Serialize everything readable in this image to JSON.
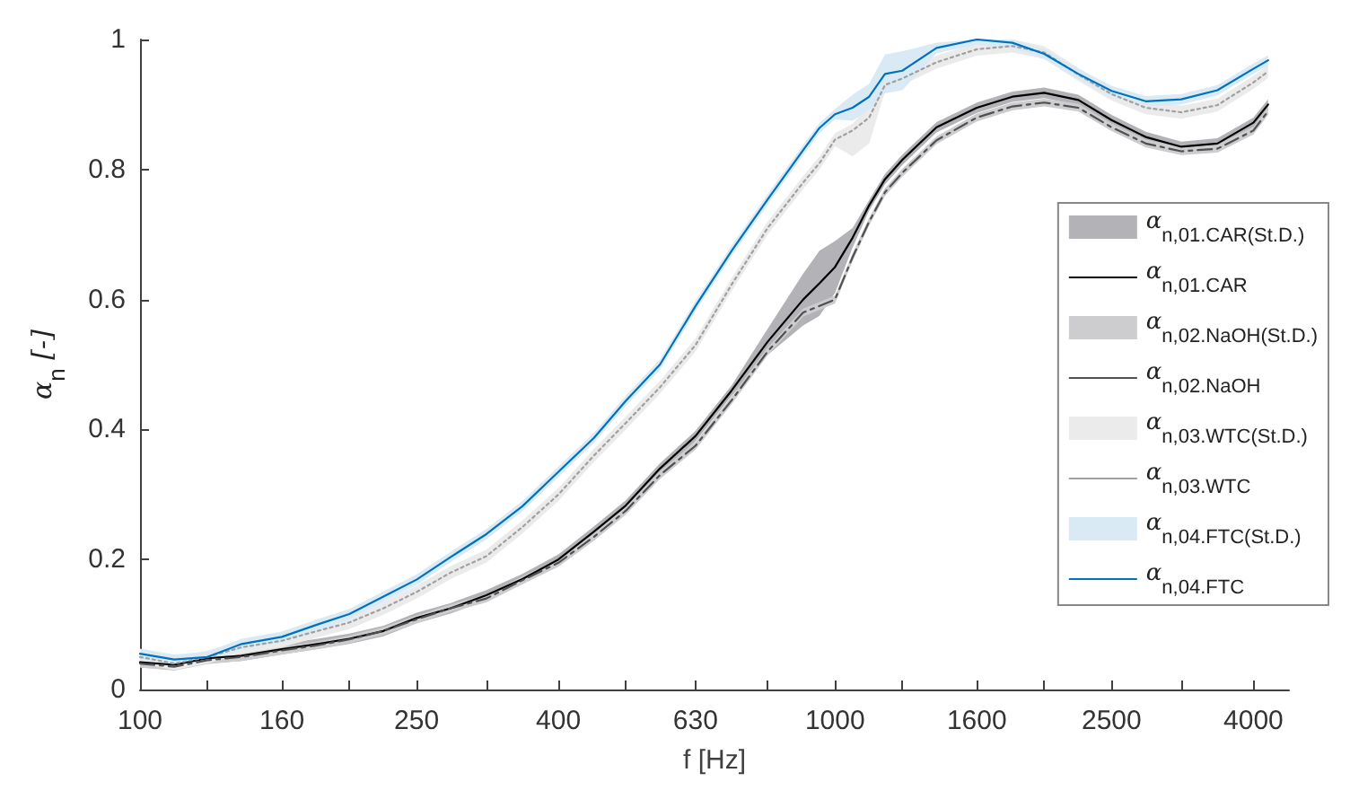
{
  "chart_data": {
    "type": "line",
    "xlabel": "f [Hz]",
    "ylabel": "α$_{n}$ [-]",
    "log": "x",
    "xlim": [
      100,
      4500
    ],
    "ylim": [
      0,
      1
    ],
    "xticks": [
      100,
      {
        "value": 125,
        "label": null
      },
      160,
      {
        "value": 200,
        "label": null
      },
      250,
      {
        "value": 315,
        "label": null
      },
      400,
      {
        "value": 500,
        "label": null
      },
      630,
      {
        "value": 800,
        "label": null
      },
      1000,
      {
        "value": 1250,
        "label": null
      },
      1600,
      {
        "value": 2000,
        "label": null
      },
      2500,
      {
        "value": 3150,
        "label": null
      },
      4000
    ],
    "yticks": [
      0,
      0.2,
      0.4,
      0.6,
      0.8,
      1
    ],
    "grid": false,
    "legend": "right",
    "marker": "none",
    "x": [
      100,
      112,
      125,
      140,
      160,
      180,
      200,
      224,
      250,
      280,
      315,
      355,
      400,
      450,
      500,
      560,
      630,
      710,
      800,
      900,
      950,
      1000,
      1060,
      1120,
      1180,
      1250,
      1400,
      1600,
      1800,
      2000,
      2240,
      2500,
      2800,
      3150,
      3550,
      4000,
      4200
    ],
    "series": [
      {
        "name": "α$_{n,01.CAR(St.D.)}$",
        "color": "#b3b3b7",
        "values": [
          null,
          null,
          null,
          null,
          null,
          null,
          null,
          null,
          null,
          null,
          null,
          null,
          null,
          null,
          null,
          null,
          null,
          null,
          null,
          null,
          null,
          null,
          null,
          null,
          null,
          null,
          null,
          null,
          null,
          null,
          null,
          null,
          null,
          null,
          null,
          null,
          null
        ],
        "lower": [
          0.034,
          0.03,
          0.04,
          0.044,
          0.054,
          0.062,
          0.07,
          0.082,
          0.102,
          0.117,
          0.137,
          0.162,
          0.192,
          0.235,
          0.275,
          0.332,
          0.382,
          0.452,
          0.515,
          0.56,
          0.575,
          0.61,
          0.68,
          0.737,
          0.777,
          0.807,
          0.857,
          0.887,
          0.904,
          0.91,
          0.899,
          0.868,
          0.842,
          0.827,
          0.832,
          0.864,
          0.892
        ],
        "upper": [
          0.05,
          0.046,
          0.056,
          0.06,
          0.07,
          0.078,
          0.086,
          0.098,
          0.118,
          0.133,
          0.153,
          0.178,
          0.208,
          0.251,
          0.291,
          0.348,
          0.398,
          0.468,
          0.555,
          0.64,
          0.675,
          0.69,
          0.71,
          0.753,
          0.793,
          0.823,
          0.873,
          0.903,
          0.92,
          0.926,
          0.915,
          0.884,
          0.858,
          0.843,
          0.848,
          0.88,
          0.908
        ]
      },
      {
        "type": "line",
        "name": "α$_{n,01.CAR}$",
        "color": "#000000",
        "line_style": "solid",
        "values": [
          0.042,
          0.038,
          0.048,
          0.052,
          0.062,
          0.07,
          0.078,
          0.09,
          0.11,
          0.125,
          0.145,
          0.17,
          0.2,
          0.243,
          0.283,
          0.34,
          0.39,
          0.46,
          0.535,
          0.6,
          0.625,
          0.65,
          0.695,
          0.745,
          0.785,
          0.815,
          0.865,
          0.895,
          0.912,
          0.918,
          0.907,
          0.876,
          0.85,
          0.835,
          0.84,
          0.872,
          0.9
        ]
      },
      {
        "name": "α$_{n,02.NaOH(St.D.)}$",
        "color": "#cdcdd0",
        "values": [
          null,
          null,
          null,
          null,
          null,
          null,
          null,
          null,
          null,
          null,
          null,
          null,
          null,
          null,
          null,
          null,
          null,
          null,
          null,
          null,
          null,
          null,
          null,
          null,
          null,
          null,
          null,
          null,
          null,
          null,
          null,
          null,
          null,
          null,
          null,
          null,
          null
        ],
        "lower": [
          0.034,
          0.029,
          0.039,
          0.044,
          0.054,
          0.062,
          0.071,
          0.084,
          0.102,
          0.119,
          0.134,
          0.162,
          0.189,
          0.229,
          0.269,
          0.324,
          0.369,
          0.439,
          0.514,
          0.574,
          0.584,
          0.594,
          0.659,
          0.714,
          0.759,
          0.789,
          0.839,
          0.874,
          0.891,
          0.897,
          0.889,
          0.859,
          0.834,
          0.822,
          0.826,
          0.854,
          0.884
        ],
        "upper": [
          0.046,
          0.041,
          0.051,
          0.056,
          0.066,
          0.074,
          0.083,
          0.096,
          0.114,
          0.131,
          0.146,
          0.174,
          0.201,
          0.241,
          0.281,
          0.336,
          0.381,
          0.451,
          0.526,
          0.586,
          0.596,
          0.606,
          0.671,
          0.726,
          0.771,
          0.801,
          0.851,
          0.886,
          0.903,
          0.909,
          0.901,
          0.871,
          0.846,
          0.834,
          0.838,
          0.866,
          0.896
        ]
      },
      {
        "type": "line",
        "name": "α$_{n,02.NaOH}$",
        "color": "#505050",
        "line_style": "dashdot",
        "values": [
          0.04,
          0.035,
          0.045,
          0.05,
          0.06,
          0.068,
          0.077,
          0.09,
          0.108,
          0.125,
          0.14,
          0.168,
          0.195,
          0.235,
          0.275,
          0.33,
          0.375,
          0.445,
          0.52,
          0.58,
          0.59,
          0.6,
          0.665,
          0.72,
          0.765,
          0.795,
          0.845,
          0.88,
          0.897,
          0.903,
          0.895,
          0.865,
          0.84,
          0.828,
          0.832,
          0.86,
          0.89
        ]
      },
      {
        "name": "α$_{n,03.WTC(St.D.)}$",
        "color": "#ebebeb",
        "values": [
          null,
          null,
          null,
          null,
          null,
          null,
          null,
          null,
          null,
          null,
          null,
          null,
          null,
          null,
          null,
          null,
          null,
          null,
          null,
          null,
          null,
          null,
          null,
          null,
          null,
          null,
          null,
          null,
          null,
          null,
          null,
          null,
          null,
          null,
          null,
          null,
          null
        ],
        "lower": [
          0.04,
          0.03,
          0.04,
          0.055,
          0.065,
          0.08,
          0.093,
          0.115,
          0.14,
          0.17,
          0.195,
          0.24,
          0.29,
          0.35,
          0.4,
          0.455,
          0.52,
          0.613,
          0.7,
          0.77,
          0.8,
          0.836,
          0.82,
          0.84,
          0.92,
          0.93,
          0.955,
          0.975,
          0.98,
          0.97,
          0.936,
          0.906,
          0.885,
          0.878,
          0.889,
          0.924,
          0.941
        ],
        "upper": [
          0.06,
          0.05,
          0.06,
          0.075,
          0.085,
          0.1,
          0.113,
          0.135,
          0.16,
          0.19,
          0.215,
          0.26,
          0.31,
          0.37,
          0.42,
          0.475,
          0.54,
          0.633,
          0.72,
          0.79,
          0.82,
          0.856,
          0.87,
          0.9,
          0.94,
          0.95,
          0.975,
          0.995,
          1,
          0.99,
          0.956,
          0.926,
          0.905,
          0.898,
          0.909,
          0.944,
          0.961
        ]
      },
      {
        "type": "line",
        "name": "α$_{n,03.WTC}$",
        "color": "#a0a0a0",
        "line_style": "dotted",
        "values": [
          0.05,
          0.04,
          0.05,
          0.065,
          0.075,
          0.09,
          0.103,
          0.125,
          0.15,
          0.18,
          0.205,
          0.25,
          0.3,
          0.36,
          0.41,
          0.465,
          0.53,
          0.623,
          0.71,
          0.78,
          0.81,
          0.846,
          0.86,
          0.88,
          0.93,
          0.94,
          0.965,
          0.985,
          0.99,
          0.98,
          0.946,
          0.916,
          0.895,
          0.888,
          0.899,
          0.934,
          0.951
        ]
      },
      {
        "name": "α$_{n,04.FTC(St.D.)}$",
        "color": "#daeaf5",
        "values": [
          null,
          null,
          null,
          null,
          null,
          null,
          null,
          null,
          null,
          null,
          null,
          null,
          null,
          null,
          null,
          null,
          null,
          null,
          null,
          null,
          null,
          null,
          null,
          null,
          null,
          null,
          null,
          null,
          null,
          null,
          null,
          null,
          null,
          null,
          null,
          null,
          null
        ],
        "lower": [
          0.047,
          0.038,
          0.042,
          0.062,
          0.073,
          0.092,
          0.108,
          0.135,
          0.161,
          0.196,
          0.231,
          0.274,
          0.327,
          0.379,
          0.436,
          0.492,
          0.582,
          0.667,
          0.746,
          0.822,
          0.856,
          0.877,
          0.875,
          0.892,
          0.917,
          0.922,
          0.979,
          0.992,
          0.987,
          0.97,
          0.939,
          0.913,
          0.897,
          0.9,
          0.914,
          0.947,
          0.96
        ],
        "upper": [
          0.063,
          0.054,
          0.058,
          0.078,
          0.089,
          0.108,
          0.124,
          0.151,
          0.177,
          0.212,
          0.247,
          0.29,
          0.343,
          0.395,
          0.452,
          0.508,
          0.598,
          0.683,
          0.762,
          0.838,
          0.872,
          0.893,
          0.915,
          0.932,
          0.977,
          0.982,
          0.995,
          1,
          1,
          0.986,
          0.955,
          0.929,
          0.913,
          0.916,
          0.93,
          0.963,
          0.976
        ]
      },
      {
        "type": "line",
        "name": "α$_{n,04.FTC}$",
        "color": "#0072bd",
        "line_style": "solid",
        "values": [
          0.055,
          0.046,
          0.05,
          0.07,
          0.081,
          0.1,
          0.116,
          0.143,
          0.169,
          0.204,
          0.239,
          0.282,
          0.335,
          0.387,
          0.444,
          0.5,
          0.59,
          0.675,
          0.754,
          0.83,
          0.864,
          0.885,
          0.895,
          0.912,
          0.947,
          0.952,
          0.987,
          1,
          0.995,
          0.978,
          0.947,
          0.921,
          0.905,
          0.908,
          0.922,
          0.955,
          0.968
        ]
      }
    ]
  }
}
